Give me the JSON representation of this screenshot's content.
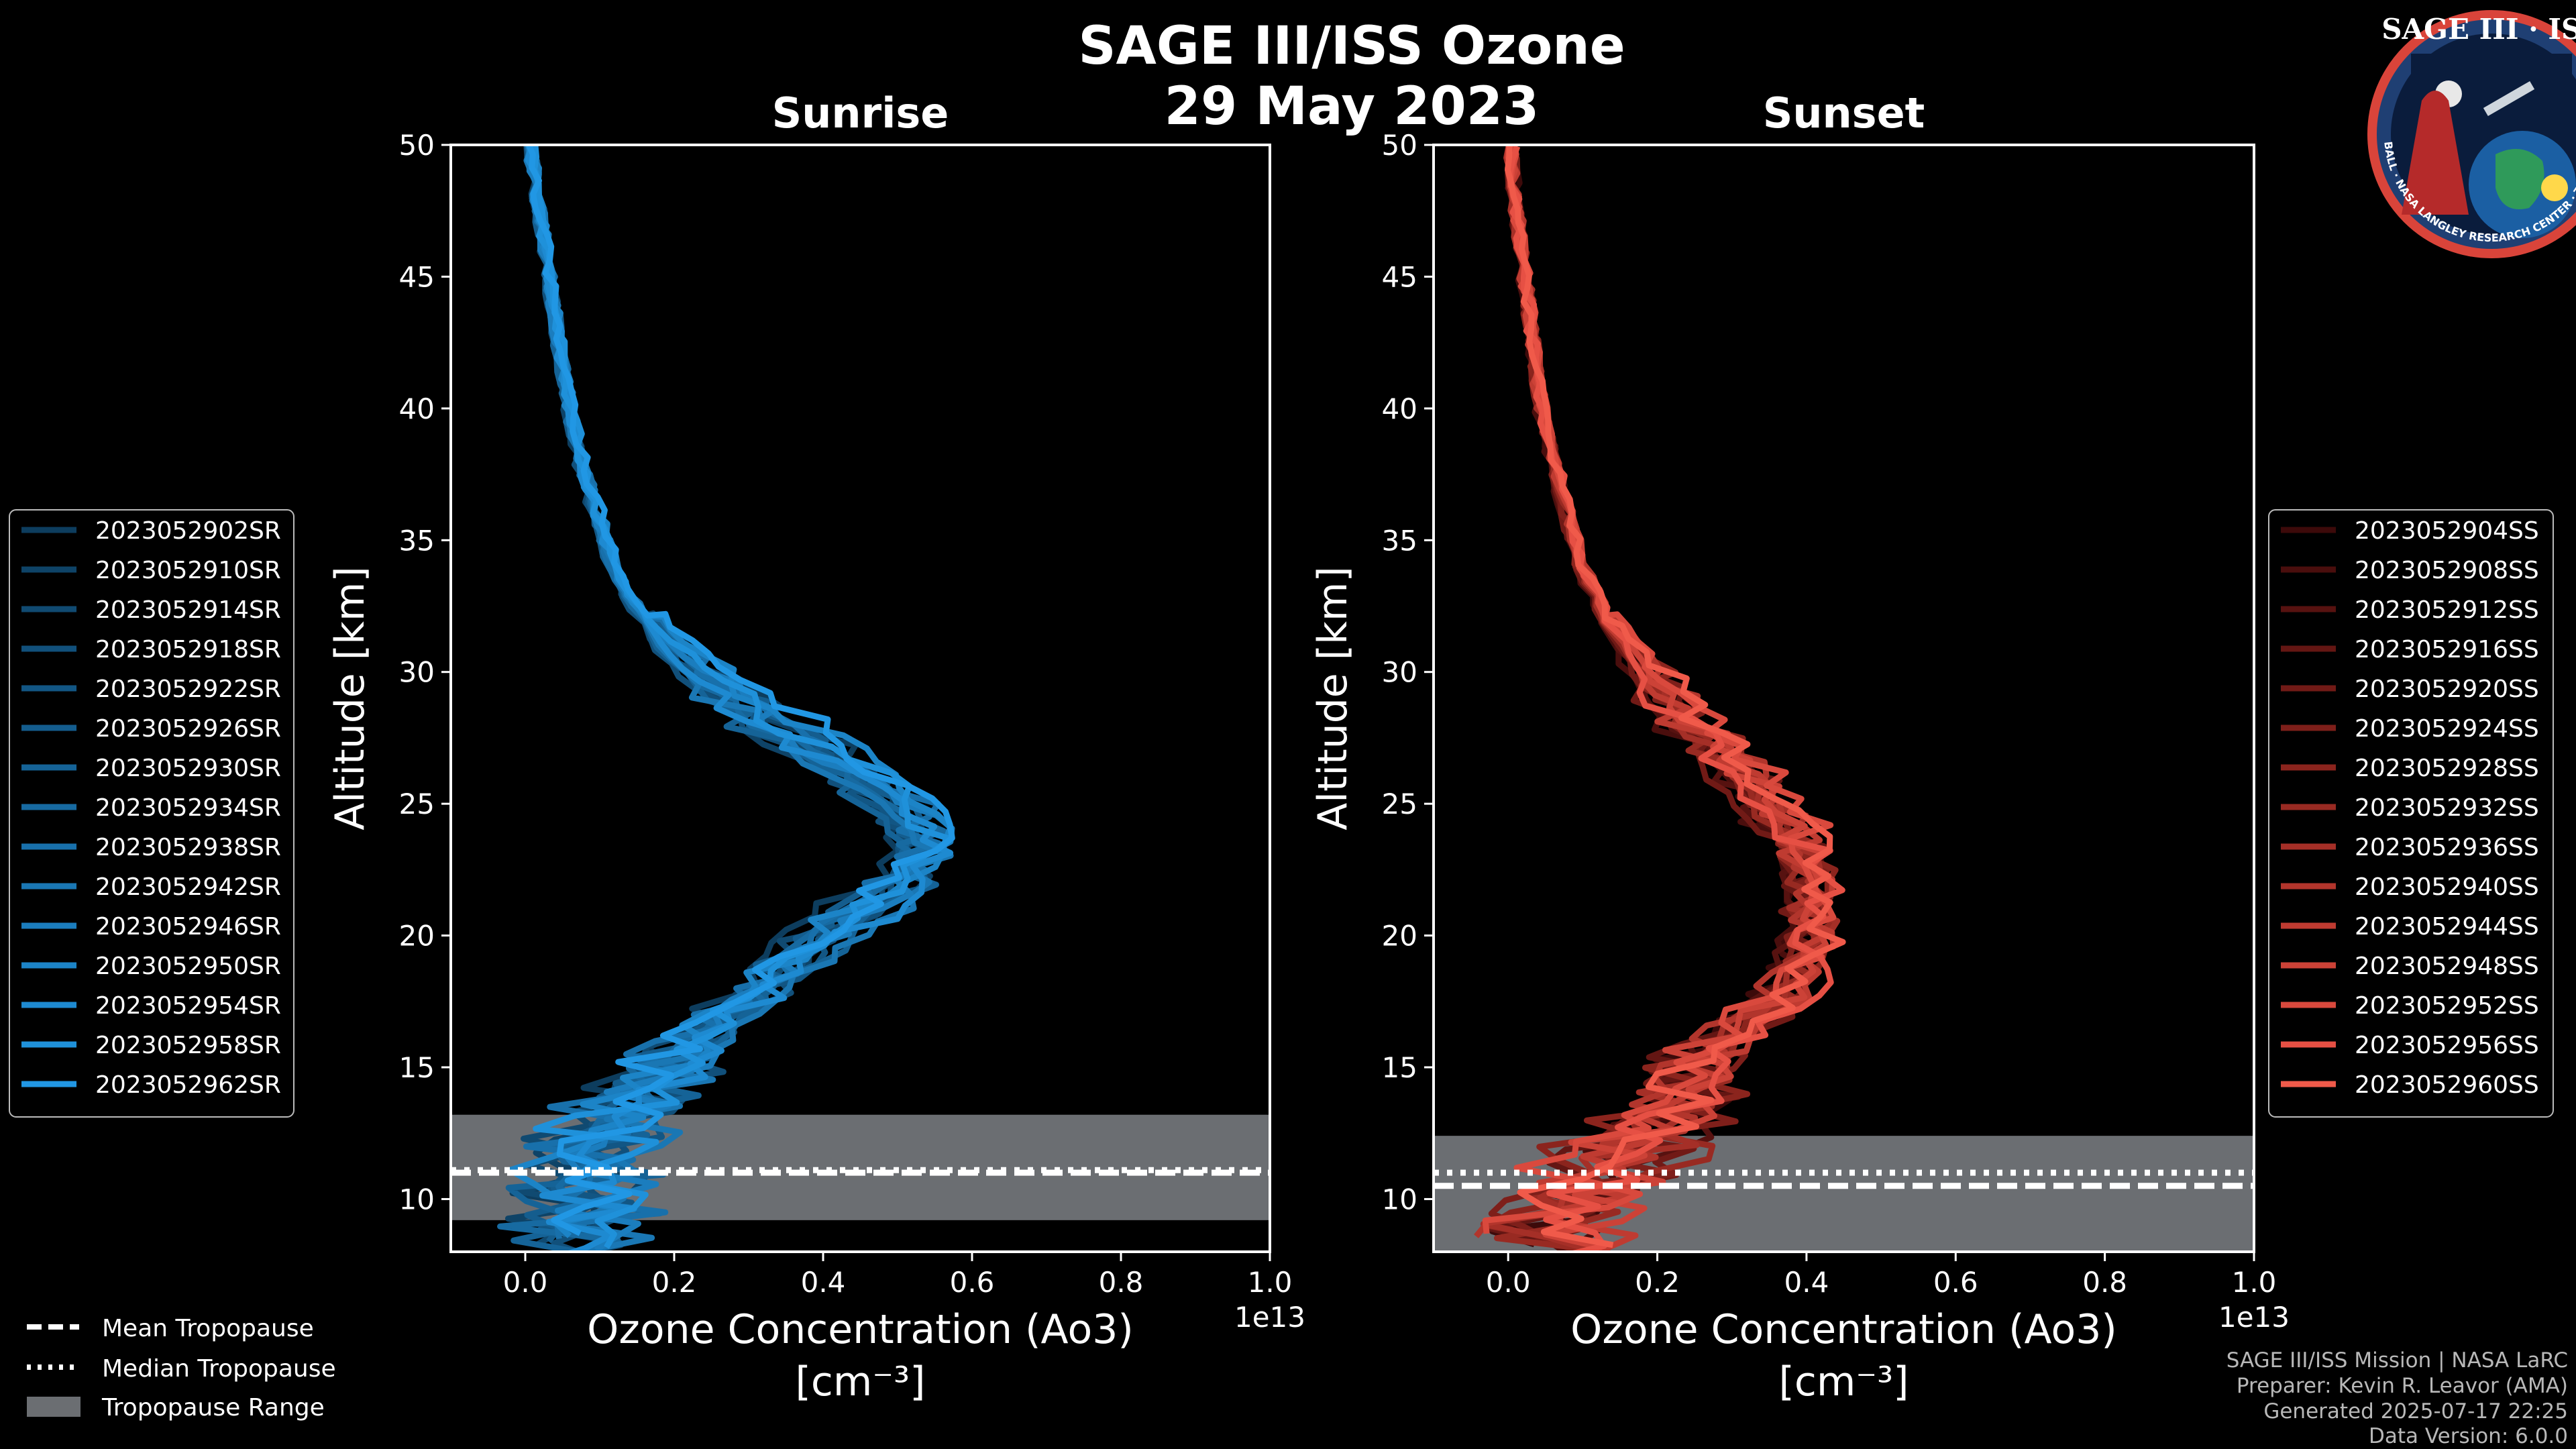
{
  "header": {
    "title_line1": "SAGE III/ISS Ozone",
    "title_line2": "29 May 2023"
  },
  "logo": {
    "text": "SAGE III · ISS",
    "ring_text": "BALL · NASA LANGLEY RESEARCH CENTER · TAS · ESA"
  },
  "footer": {
    "line1": "SAGE III/ISS Mission | NASA LaRC",
    "line2": "Preparer: Kevin R. Leavor (AMA)",
    "line3": "Generated 2025-07-17 22:25",
    "line4": "Data Version: 6.0.0"
  },
  "bottom_legend": {
    "mean": "Mean Tropopause",
    "median": "Median Tropopause",
    "range": "Tropopause Range"
  },
  "colors": {
    "sunrise": "#1a8fd6",
    "sunset": "#f05a4a",
    "tropo": "#6b6e72"
  },
  "chart_data": [
    {
      "type": "line",
      "title": "Sunrise",
      "xlabel": "Ozone Concentration (Ao3)",
      "xlabel_units": "[cm⁻³]",
      "ylabel": "Altitude [km]",
      "x_offset_text": "1e13",
      "xlim": [
        -0.1,
        1.0
      ],
      "ylim": [
        8,
        50
      ],
      "xticks": [
        "0.0",
        "0.2",
        "0.4",
        "0.6",
        "0.8",
        "1.0"
      ],
      "yticks": [
        "10",
        "15",
        "20",
        "25",
        "30",
        "35",
        "40",
        "45",
        "50"
      ],
      "tropopause": {
        "mean": 11.0,
        "median": 11.1,
        "range": [
          9.2,
          13.2
        ]
      },
      "series_names": [
        "2023052902SR",
        "2023052910SR",
        "2023052914SR",
        "2023052918SR",
        "2023052922SR",
        "2023052926SR",
        "2023052930SR",
        "2023052934SR",
        "2023052938SR",
        "2023052942SR",
        "2023052946SR",
        "2023052950SR",
        "2023052954SR",
        "2023052958SR",
        "2023052962SR"
      ],
      "series_colors": [
        "#0d3d5e",
        "#0e4367",
        "#104a71",
        "#11507b",
        "#125684",
        "#145d8e",
        "#156397",
        "#176aa1",
        "#1870ab",
        "#1a77b4",
        "#1b7dbe",
        "#1c84c7",
        "#1e8ad1",
        "#1f91da",
        "#2197e4"
      ],
      "base_profile": {
        "altitude": [
          8,
          9,
          10,
          11,
          12,
          13,
          14,
          15,
          16,
          17,
          18,
          19,
          20,
          21,
          22,
          23,
          24,
          25,
          26,
          27,
          28,
          29,
          30,
          31,
          32,
          33,
          34,
          35,
          36,
          38,
          40,
          42,
          44,
          46,
          48,
          50
        ],
        "ozone": [
          0.06,
          0.07,
          0.07,
          0.08,
          0.1,
          0.12,
          0.15,
          0.18,
          0.22,
          0.26,
          0.3,
          0.34,
          0.38,
          0.43,
          0.48,
          0.5,
          0.5,
          0.47,
          0.42,
          0.37,
          0.31,
          0.26,
          0.22,
          0.18,
          0.15,
          0.13,
          0.11,
          0.1,
          0.09,
          0.07,
          0.055,
          0.045,
          0.035,
          0.025,
          0.015,
          0.005
        ]
      }
    },
    {
      "type": "line",
      "title": "Sunset",
      "xlabel": "Ozone Concentration (Ao3)",
      "xlabel_units": "[cm⁻³]",
      "ylabel": "Altitude [km]",
      "x_offset_text": "1e13",
      "xlim": [
        -0.1,
        1.0
      ],
      "ylim": [
        8,
        50
      ],
      "xticks": [
        "0.0",
        "0.2",
        "0.4",
        "0.6",
        "0.8",
        "1.0"
      ],
      "yticks": [
        "10",
        "15",
        "20",
        "25",
        "30",
        "35",
        "40",
        "45",
        "50"
      ],
      "tropopause": {
        "mean": 10.5,
        "median": 11.0,
        "range": [
          8,
          12.4
        ]
      },
      "series_names": [
        "2023052904SS",
        "2023052908SS",
        "2023052912SS",
        "2023052916SS",
        "2023052920SS",
        "2023052924SS",
        "2023052928SS",
        "2023052932SS",
        "2023052936SS",
        "2023052940SS",
        "2023052944SS",
        "2023052948SS",
        "2023052952SS",
        "2023052956SS",
        "2023052960SS"
      ],
      "series_colors": [
        "#3d0a0a",
        "#4a0e0d",
        "#571210",
        "#641613",
        "#711a16",
        "#7e1f1a",
        "#8b241d",
        "#982a22",
        "#a52f27",
        "#b2352c",
        "#bf3b31",
        "#cc4237",
        "#d9493d",
        "#e65044",
        "#f05a4a"
      ],
      "base_profile": {
        "altitude": [
          8,
          9,
          10,
          11,
          12,
          13,
          14,
          15,
          16,
          17,
          18,
          19,
          20,
          21,
          22,
          23,
          24,
          25,
          26,
          27,
          28,
          29,
          30,
          31,
          32,
          33,
          34,
          35,
          36,
          38,
          40,
          42,
          44,
          46,
          48,
          50
        ],
        "ozone": [
          0.05,
          0.08,
          0.1,
          0.14,
          0.2,
          0.24,
          0.26,
          0.28,
          0.32,
          0.38,
          0.43,
          0.45,
          0.46,
          0.46,
          0.46,
          0.45,
          0.43,
          0.4,
          0.36,
          0.32,
          0.28,
          0.24,
          0.21,
          0.18,
          0.15,
          0.13,
          0.11,
          0.1,
          0.09,
          0.07,
          0.05,
          0.04,
          0.03,
          0.02,
          0.01,
          0.005
        ]
      }
    }
  ]
}
